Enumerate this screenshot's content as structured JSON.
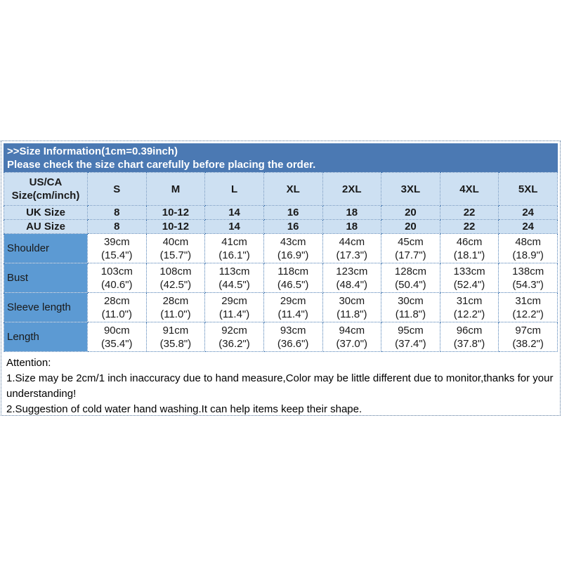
{
  "header": {
    "title": ">>Size Information(1cm=0.39inch)",
    "subtitle": "Please check the size chart carefully before placing the order."
  },
  "table": {
    "corner": {
      "line1": "US/CA",
      "line2": "Size(cm/inch)"
    },
    "sizes": [
      "S",
      "M",
      "L",
      "XL",
      "2XL",
      "3XL",
      "4XL",
      "5XL"
    ],
    "uk": {
      "label": "UK Size",
      "values": [
        "8",
        "10-12",
        "14",
        "16",
        "18",
        "20",
        "22",
        "24"
      ]
    },
    "au": {
      "label": "AU Size",
      "values": [
        "8",
        "10-12",
        "14",
        "16",
        "18",
        "20",
        "22",
        "24"
      ]
    },
    "rows": [
      {
        "label": "Shoulder",
        "cm": [
          "39cm",
          "40cm",
          "41cm",
          "43cm",
          "44cm",
          "45cm",
          "46cm",
          "48cm"
        ],
        "inch": [
          "(15.4\")",
          "(15.7\")",
          "(16.1\")",
          "(16.9\")",
          "(17.3\")",
          "(17.7\")",
          "(18.1\")",
          "(18.9\")"
        ]
      },
      {
        "label": "Bust",
        "cm": [
          "103cm",
          "108cm",
          "113cm",
          "118cm",
          "123cm",
          "128cm",
          "133cm",
          "138cm"
        ],
        "inch": [
          "(40.6\")",
          "(42.5\")",
          "(44.5\")",
          "(46.5\")",
          "(48.4\")",
          "(50.4\")",
          "(52.4\")",
          "(54.3\")"
        ]
      },
      {
        "label": "Sleeve length",
        "cm": [
          "28cm",
          "28cm",
          "29cm",
          "29cm",
          "30cm",
          "30cm",
          "31cm",
          "31cm"
        ],
        "inch": [
          "(11.0\")",
          "(11.0\")",
          "(11.4\")",
          "(11.4\")",
          "(11.8\")",
          "(11.8\")",
          "(12.2\")",
          "(12.2\")"
        ]
      },
      {
        "label": "Length",
        "cm": [
          "90cm",
          "91cm",
          "92cm",
          "93cm",
          "94cm",
          "95cm",
          "96cm",
          "97cm"
        ],
        "inch": [
          "(35.4\")",
          "(35.8\")",
          "(36.2\")",
          "(36.6\")",
          "(37.0\")",
          "(37.4\")",
          "(37.8\")",
          "(38.2\")"
        ]
      }
    ]
  },
  "attention": {
    "title": "Attention:",
    "notes": [
      "1.Size may be 2cm/1 inch inaccuracy due to hand measure,Color may be little different due to monitor,thanks for your understanding!",
      "2.Suggestion of cold water hand washing.It can help items keep their shape."
    ]
  },
  "colors": {
    "header_bar": "#4b79b3",
    "light_row": "#cde0f2",
    "label_column": "#5c9ad3",
    "cell_border": "#4d7eb4",
    "outer_border": "#53749a"
  }
}
